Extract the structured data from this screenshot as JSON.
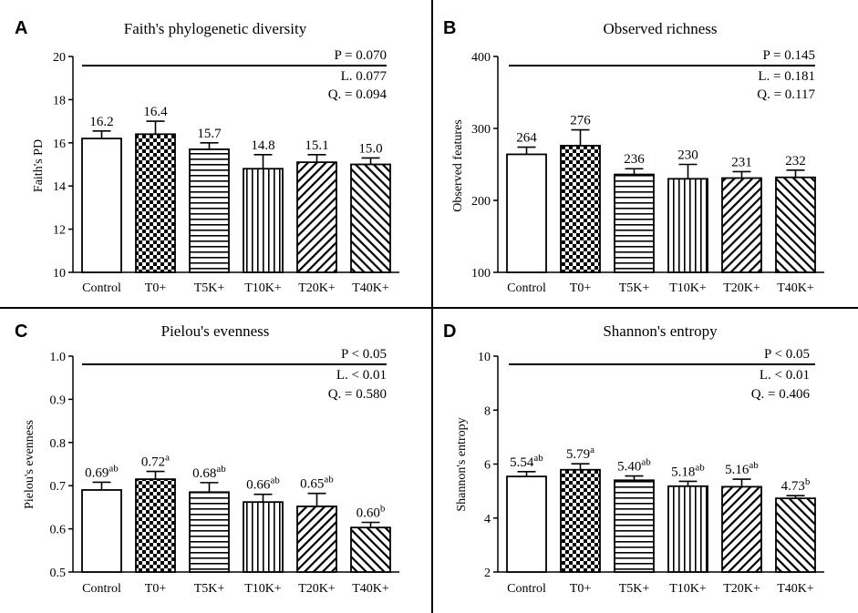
{
  "colors": {
    "ink": "#000000",
    "background": "#ffffff"
  },
  "chart_data": [
    {
      "letter": "A",
      "type": "bar",
      "title": "Faith's phylogenetic diversity",
      "ylabel": "Faith's PD",
      "xlabel": "",
      "ylim": [
        10,
        20
      ],
      "yticks": [
        10,
        12,
        14,
        16,
        18,
        20
      ],
      "tick_format": "0",
      "categories": [
        "Control",
        "T0+",
        "T5K+",
        "T10K+",
        "T20K+",
        "T40K+"
      ],
      "patterns": [
        "none",
        "checker",
        "horizontal",
        "vertical",
        "diag-right",
        "diag-left"
      ],
      "values": [
        16.2,
        16.4,
        15.7,
        14.8,
        15.1,
        15.0
      ],
      "errors": [
        0.35,
        0.6,
        0.3,
        0.65,
        0.35,
        0.3
      ],
      "value_labels": [
        "16.2",
        "16.4",
        "15.7",
        "14.8",
        "15.1",
        "15.0"
      ],
      "superscripts": [
        "",
        "",
        "",
        "",
        "",
        ""
      ],
      "stats": [
        {
          "label": "P",
          "rest": " = 0.070"
        },
        {
          "label": "L.",
          "rest": " 0.077"
        },
        {
          "label": "Q.",
          "rest": " = 0.094"
        }
      ]
    },
    {
      "letter": "B",
      "type": "bar",
      "title": "Observed richness",
      "ylabel": "Observed features",
      "xlabel": "",
      "ylim": [
        100,
        400
      ],
      "yticks": [
        100,
        200,
        300,
        400
      ],
      "tick_format": "0",
      "categories": [
        "Control",
        "T0+",
        "T5K+",
        "T10K+",
        "T20K+",
        "T40K+"
      ],
      "patterns": [
        "none",
        "checker",
        "horizontal",
        "vertical",
        "diag-right",
        "diag-left"
      ],
      "values": [
        264,
        276,
        236,
        230,
        231,
        232
      ],
      "errors": [
        10,
        22,
        8,
        20,
        9,
        10
      ],
      "value_labels": [
        "264",
        "276",
        "236",
        "230",
        "231",
        "232"
      ],
      "superscripts": [
        "",
        "",
        "",
        "",
        "",
        ""
      ],
      "stats": [
        {
          "label": "P",
          "rest": " = 0.145"
        },
        {
          "label": "L.",
          "rest": " = 0.181"
        },
        {
          "label": "Q.",
          "rest": " = 0.117"
        }
      ]
    },
    {
      "letter": "C",
      "type": "bar",
      "title": "Pielou's evenness",
      "ylabel": "Pielou's evenness",
      "xlabel": "",
      "ylim": [
        0.5,
        1.0
      ],
      "yticks": [
        0.5,
        0.6,
        0.7,
        0.8,
        0.9,
        1.0
      ],
      "tick_format": "1",
      "categories": [
        "Control",
        "T0+",
        "T5K+",
        "T10K+",
        "T20K+",
        "T40K+"
      ],
      "patterns": [
        "none",
        "checker",
        "horizontal",
        "vertical",
        "diag-right",
        "diag-left"
      ],
      "values": [
        0.69,
        0.715,
        0.685,
        0.662,
        0.652,
        0.603
      ],
      "errors": [
        0.018,
        0.018,
        0.022,
        0.018,
        0.03,
        0.012
      ],
      "value_labels": [
        "0.69",
        "0.72",
        "0.68",
        "0.66",
        "0.65",
        "0.60"
      ],
      "superscripts": [
        "ab",
        "a",
        "ab",
        "ab",
        "ab",
        "b"
      ],
      "stats": [
        {
          "label": "P",
          "rest": " < 0.05"
        },
        {
          "label": "L.",
          "rest": " < 0.01"
        },
        {
          "label": "Q.",
          "rest": " = 0.580"
        }
      ]
    },
    {
      "letter": "D",
      "type": "bar",
      "title": "Shannon's entropy",
      "ylabel": "Shannon's entropy",
      "xlabel": "",
      "ylim": [
        2,
        10
      ],
      "yticks": [
        2,
        4,
        6,
        8,
        10
      ],
      "tick_format": "0",
      "categories": [
        "Control",
        "T0+",
        "T5K+",
        "T10K+",
        "T20K+",
        "T40K+"
      ],
      "patterns": [
        "none",
        "checker",
        "horizontal",
        "vertical",
        "diag-right",
        "diag-left"
      ],
      "values": [
        5.54,
        5.79,
        5.4,
        5.18,
        5.16,
        4.73
      ],
      "errors": [
        0.18,
        0.22,
        0.16,
        0.18,
        0.28,
        0.1
      ],
      "value_labels": [
        "5.54",
        "5.79",
        "5.40",
        "5.18",
        "5.16",
        "4.73"
      ],
      "superscripts": [
        "ab",
        "a",
        "ab",
        "ab",
        "ab",
        "b"
      ],
      "stats": [
        {
          "label": "P",
          "rest": " < 0.05"
        },
        {
          "label": "L.",
          "rest": " < 0.01"
        },
        {
          "label": "Q.",
          "rest": " = 0.406"
        }
      ]
    }
  ]
}
